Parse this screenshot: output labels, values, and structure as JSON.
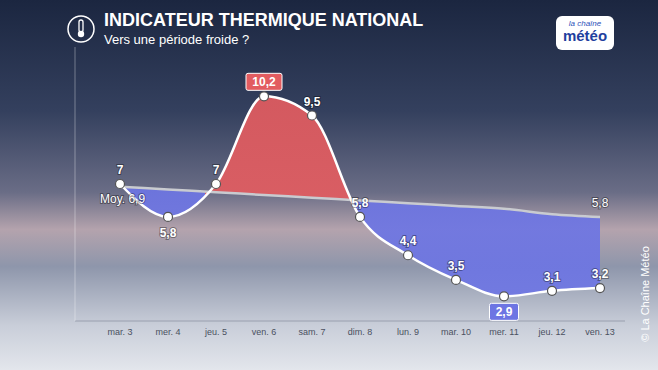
{
  "chart_data": {
    "type": "line",
    "title": "INDICATEUR THERMIQUE NATIONAL",
    "subtitle": "Vers une période froide ?",
    "logo": [
      "la chaîne",
      "météo"
    ],
    "credit": "© La Chaîne Météo",
    "categories": [
      "mar. 3",
      "mer. 4",
      "jeu. 5",
      "ven. 6",
      "sam. 7",
      "dim. 8",
      "lun. 9",
      "mar. 10",
      "mer. 11",
      "jeu. 12",
      "ven. 13"
    ],
    "series": [
      {
        "name": "Moy.",
        "color": "#c9cbd0",
        "values": [
          6.9,
          6.8,
          6.7,
          6.6,
          6.5,
          6.4,
          6.3,
          6.2,
          6.1,
          5.9,
          5.8
        ],
        "value_labels": [
          "6,9",
          null,
          null,
          null,
          null,
          null,
          null,
          null,
          null,
          null,
          "5,8"
        ]
      },
      {
        "color": "#ffffff",
        "marker": "circle",
        "values": [
          7,
          5.8,
          7,
          10.2,
          9.5,
          5.8,
          4.4,
          3.5,
          2.9,
          3.1,
          3.2
        ],
        "value_labels": [
          "7",
          "5,8",
          "7",
          "10,2",
          "9,5",
          "5,8",
          "4,4",
          "3,5",
          "2,9",
          "3,1",
          "3,2"
        ]
      }
    ],
    "ylim": [
      2,
      12
    ],
    "data_labels": true,
    "tick_labels": "x",
    "grid": false
  }
}
